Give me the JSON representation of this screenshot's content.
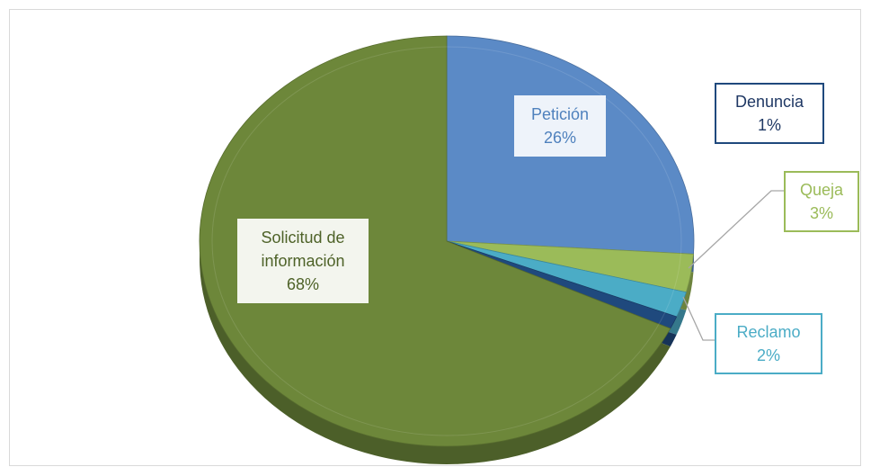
{
  "chart_data": {
    "type": "pie",
    "categories": [
      "Petición",
      "Queja",
      "Reclamo",
      "Denuncia",
      "Solicitud de información"
    ],
    "values": [
      26,
      3,
      2,
      1,
      68
    ],
    "value_labels": [
      "26%",
      "3%",
      "2%",
      "1%",
      "68%"
    ],
    "colors": [
      "#5b8ac6",
      "#9bbb59",
      "#4bacc6",
      "#1f497d",
      "#6d873a"
    ]
  }
}
